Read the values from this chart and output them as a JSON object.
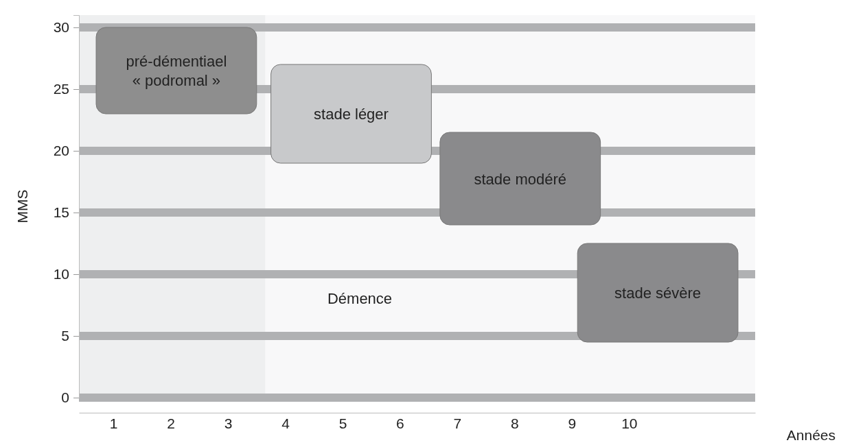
{
  "chart_data": {
    "type": "bar",
    "xlabel": "Années",
    "ylabel": "MMS",
    "x": [
      2.1,
      5.15,
      8.1,
      10.5
    ],
    "base": [
      23,
      19,
      14,
      4.5
    ],
    "values": [
      7,
      8,
      7.5,
      8
    ],
    "colors": [
      "#8e8e8e",
      "#c8c9cb",
      "#8a8a8c",
      "#8a8a8c"
    ],
    "xlim": [
      0.4,
      12.2
    ],
    "xticks": [
      1,
      2,
      3,
      4,
      5,
      6,
      7,
      8,
      9,
      10
    ],
    "ylim": [
      0,
      31
    ],
    "yticks": [
      0,
      5,
      10,
      15,
      20,
      25,
      30
    ],
    "grid": "y",
    "bands": [
      {
        "axis": "x",
        "from": 0.4,
        "to": 3.65,
        "color": "#eeeff0"
      }
    ],
    "annotations": [
      "pré-démentiael\n« podromal »",
      "stade léger",
      "stade modéré",
      "stade sévère",
      "Démence"
    ]
  }
}
